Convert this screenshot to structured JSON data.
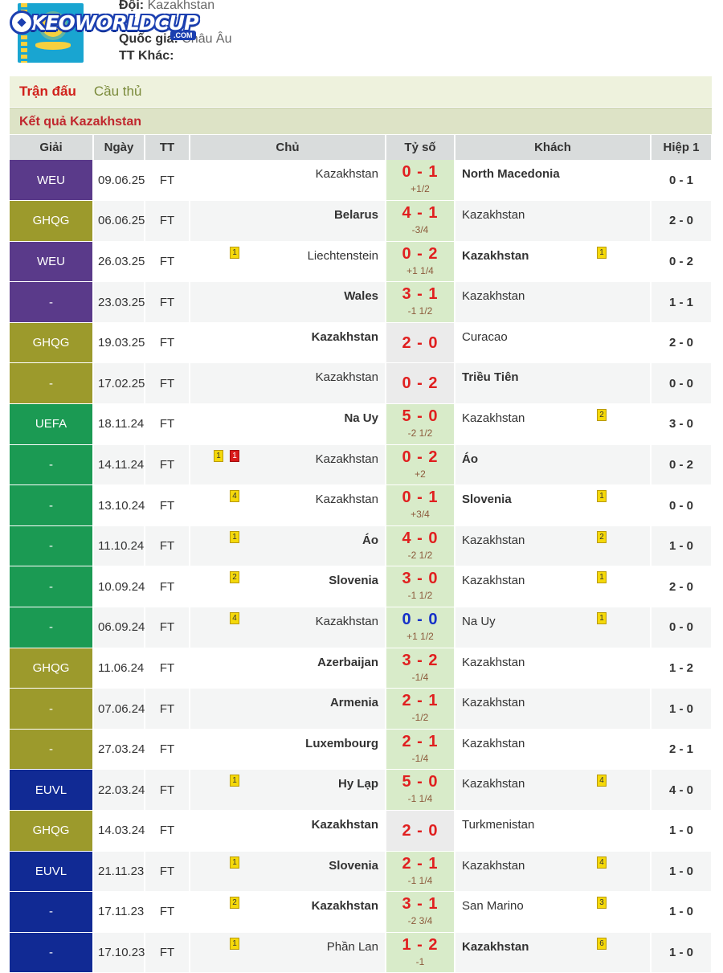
{
  "header": {
    "team_label": "Đội:",
    "team_value": "Kazakhstan",
    "country_label": "Quốc gia:",
    "country_value": "Châu Âu",
    "other_label": "TT Khác:",
    "logo_text": "KEOWORLDCUP",
    "logo_sub": ".COM"
  },
  "tabs": {
    "matches": "Trận đấu",
    "players": "Cầu thủ"
  },
  "section_title": "Kết quả Kazakhstan",
  "columns": [
    "Giải",
    "Ngày",
    "TT",
    "Chủ",
    "Tỷ số",
    "Khách",
    "Hiệp 1"
  ],
  "league_colors": {
    "WEU": "#5a3a8a",
    "GHQG": "#9c9a2c",
    "UEFA": "#1b9a53",
    "EUVL": "#112a94",
    "dash_purple": "#5a3a8a",
    "dash_olive": "#9c9a2c",
    "dash_green": "#1b9a53",
    "dash_navy": "#112a94"
  },
  "matches": [
    {
      "league": "WEU",
      "color": "#5a3a8a",
      "date": "09.06.25",
      "status": "FT",
      "home": "Kazakhstan",
      "home_bold": false,
      "score": "0 - 1",
      "handicap": "+1/2",
      "away": "North Macedonia",
      "away_bold": true,
      "half": "0 - 1",
      "home_cards": [],
      "away_cards": []
    },
    {
      "league": "GHQG",
      "color": "#9c9a2c",
      "date": "06.06.25",
      "status": "FT",
      "home": "Belarus",
      "home_bold": true,
      "score": "4 - 1",
      "handicap": "-3/4",
      "away": "Kazakhstan",
      "away_bold": false,
      "half": "2 - 0",
      "home_cards": [],
      "away_cards": []
    },
    {
      "league": "WEU",
      "color": "#5a3a8a",
      "date": "26.03.25",
      "status": "FT",
      "home": "Liechtenstein",
      "home_bold": false,
      "score": "0 - 2",
      "handicap": "+1 1/4",
      "away": "Kazakhstan",
      "away_bold": true,
      "half": "0 - 2",
      "home_cards": [
        "1"
      ],
      "away_cards": [
        "1"
      ]
    },
    {
      "league": "-",
      "color": "#5a3a8a",
      "date": "23.03.25",
      "status": "FT",
      "home": "Wales",
      "home_bold": true,
      "score": "3 - 1",
      "handicap": "-1 1/2",
      "away": "Kazakhstan",
      "away_bold": false,
      "half": "1 - 1",
      "home_cards": [],
      "away_cards": []
    },
    {
      "league": "GHQG",
      "color": "#9c9a2c",
      "date": "19.03.25",
      "status": "FT",
      "home": "Kazakhstan",
      "home_bold": true,
      "score": "2 - 0",
      "handicap": "",
      "away": "Curacao",
      "away_bold": false,
      "half": "2 - 0",
      "home_cards": [],
      "away_cards": []
    },
    {
      "league": "-",
      "color": "#9c9a2c",
      "date": "17.02.25",
      "status": "FT",
      "home": "Kazakhstan",
      "home_bold": false,
      "score": "0 - 2",
      "handicap": "",
      "away": "Triều Tiên",
      "away_bold": true,
      "half": "0 - 0",
      "home_cards": [],
      "away_cards": []
    },
    {
      "league": "UEFA",
      "color": "#1b9a53",
      "date": "18.11.24",
      "status": "FT",
      "home": "Na Uy",
      "home_bold": true,
      "score": "5 - 0",
      "handicap": "-2 1/2",
      "away": "Kazakhstan",
      "away_bold": false,
      "half": "3 - 0",
      "home_cards": [],
      "away_cards": [
        "2"
      ]
    },
    {
      "league": "-",
      "color": "#1b9a53",
      "date": "14.11.24",
      "status": "FT",
      "home": "Kazakhstan",
      "home_bold": false,
      "score": "0 - 2",
      "handicap": "+2",
      "away": "Áo",
      "away_bold": true,
      "half": "0 - 2",
      "home_cards": [
        "1",
        "1r"
      ],
      "away_cards": []
    },
    {
      "league": "-",
      "color": "#1b9a53",
      "date": "13.10.24",
      "status": "FT",
      "home": "Kazakhstan",
      "home_bold": false,
      "score": "0 - 1",
      "handicap": "+3/4",
      "away": "Slovenia",
      "away_bold": true,
      "half": "0 - 0",
      "home_cards": [
        "4"
      ],
      "away_cards": [
        "1"
      ]
    },
    {
      "league": "-",
      "color": "#1b9a53",
      "date": "11.10.24",
      "status": "FT",
      "home": "Áo",
      "home_bold": true,
      "score": "4 - 0",
      "handicap": "-2 1/2",
      "away": "Kazakhstan",
      "away_bold": false,
      "half": "1 - 0",
      "home_cards": [
        "1"
      ],
      "away_cards": [
        "2"
      ]
    },
    {
      "league": "-",
      "color": "#1b9a53",
      "date": "10.09.24",
      "status": "FT",
      "home": "Slovenia",
      "home_bold": true,
      "score": "3 - 0",
      "handicap": "-1 1/2",
      "away": "Kazakhstan",
      "away_bold": false,
      "half": "2 - 0",
      "home_cards": [
        "2"
      ],
      "away_cards": [
        "1"
      ]
    },
    {
      "league": "-",
      "color": "#1b9a53",
      "date": "06.09.24",
      "status": "FT",
      "home": "Kazakhstan",
      "home_bold": false,
      "score": "0 - 0",
      "handicap": "+1 1/2",
      "away": "Na Uy",
      "away_bold": false,
      "half": "0 - 0",
      "home_cards": [
        "4"
      ],
      "away_cards": [
        "1"
      ],
      "draw": true
    },
    {
      "league": "GHQG",
      "color": "#9c9a2c",
      "date": "11.06.24",
      "status": "FT",
      "home": "Azerbaijan",
      "home_bold": true,
      "score": "3 - 2",
      "handicap": "-1/4",
      "away": "Kazakhstan",
      "away_bold": false,
      "half": "1 - 2",
      "home_cards": [],
      "away_cards": []
    },
    {
      "league": "-",
      "color": "#9c9a2c",
      "date": "07.06.24",
      "status": "FT",
      "home": "Armenia",
      "home_bold": true,
      "score": "2 - 1",
      "handicap": "-1/2",
      "away": "Kazakhstan",
      "away_bold": false,
      "half": "1 - 0",
      "home_cards": [],
      "away_cards": []
    },
    {
      "league": "-",
      "color": "#9c9a2c",
      "date": "27.03.24",
      "status": "FT",
      "home": "Luxembourg",
      "home_bold": true,
      "score": "2 - 1",
      "handicap": "-1/4",
      "away": "Kazakhstan",
      "away_bold": false,
      "half": "2 - 1",
      "home_cards": [],
      "away_cards": []
    },
    {
      "league": "EUVL",
      "color": "#112a94",
      "date": "22.03.24",
      "status": "FT",
      "home": "Hy Lạp",
      "home_bold": true,
      "score": "5 - 0",
      "handicap": "-1 1/4",
      "away": "Kazakhstan",
      "away_bold": false,
      "half": "4 - 0",
      "home_cards": [
        "1"
      ],
      "away_cards": [
        "4"
      ]
    },
    {
      "league": "GHQG",
      "color": "#9c9a2c",
      "date": "14.03.24",
      "status": "FT",
      "home": "Kazakhstan",
      "home_bold": true,
      "score": "2 - 0",
      "handicap": "",
      "away": "Turkmenistan",
      "away_bold": false,
      "half": "1 - 0",
      "home_cards": [],
      "away_cards": []
    },
    {
      "league": "EUVL",
      "color": "#112a94",
      "date": "21.11.23",
      "status": "FT",
      "home": "Slovenia",
      "home_bold": true,
      "score": "2 - 1",
      "handicap": "-1 1/4",
      "away": "Kazakhstan",
      "away_bold": false,
      "half": "1 - 0",
      "home_cards": [
        "1"
      ],
      "away_cards": [
        "4"
      ]
    },
    {
      "league": "-",
      "color": "#112a94",
      "date": "17.11.23",
      "status": "FT",
      "home": "Kazakhstan",
      "home_bold": true,
      "score": "3 - 1",
      "handicap": "-2 3/4",
      "away": "San Marino",
      "away_bold": false,
      "half": "1 - 0",
      "home_cards": [
        "2"
      ],
      "away_cards": [
        "3"
      ]
    },
    {
      "league": "-",
      "color": "#112a94",
      "date": "17.10.23",
      "status": "FT",
      "home": "Phần Lan",
      "home_bold": false,
      "score": "1 - 2",
      "handicap": "-1",
      "away": "Kazakhstan",
      "away_bold": true,
      "half": "1 - 0",
      "home_cards": [
        "1"
      ],
      "away_cards": [
        "6"
      ]
    }
  ]
}
